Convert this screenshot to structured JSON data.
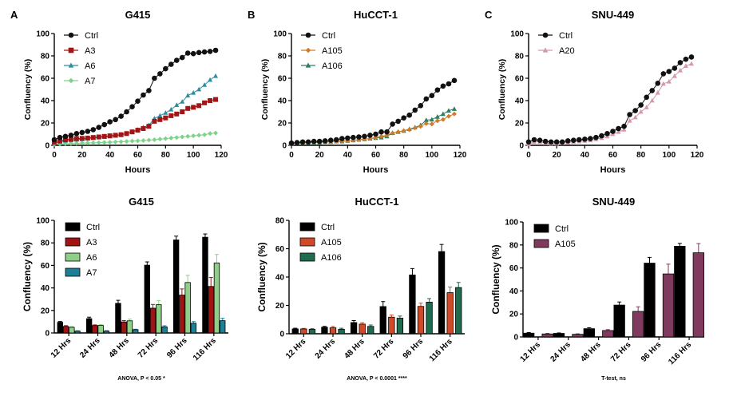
{
  "chart_data": [
    {
      "type": "line",
      "panel_label": "A",
      "title": "G415",
      "xlabel": "Hours",
      "ylabel": "Confluency (%)",
      "xlim": [
        0,
        120
      ],
      "ylim": [
        0,
        100
      ],
      "xticks": [
        0,
        20,
        40,
        60,
        80,
        100,
        120
      ],
      "yticks": [
        0,
        20,
        40,
        60,
        80,
        100
      ],
      "legend": "top-left",
      "grid": false,
      "x": [
        0,
        4,
        8,
        12,
        16,
        20,
        24,
        28,
        32,
        36,
        40,
        44,
        48,
        52,
        56,
        60,
        64,
        68,
        72,
        76,
        80,
        84,
        88,
        92,
        96,
        100,
        104,
        108,
        112,
        116
      ],
      "series": [
        {
          "name": "Ctrl",
          "color": "#111111",
          "marker": "circle",
          "values": [
            5,
            7,
            8,
            9,
            10.5,
            11.5,
            12.5,
            14,
            16,
            18.5,
            21,
            23,
            26,
            30,
            34.5,
            39.5,
            45,
            49,
            60,
            64,
            68.5,
            72.5,
            76,
            78.5,
            82.5,
            82,
            83,
            83.5,
            84,
            85
          ]
        },
        {
          "name": "A3",
          "color": "#a31515",
          "marker": "square",
          "values": [
            3,
            4,
            5,
            5.5,
            6,
            6.2,
            6.5,
            7,
            7.5,
            8,
            8.5,
            9,
            9.5,
            10.5,
            12,
            13.5,
            15,
            17,
            21.5,
            23,
            24.5,
            26.5,
            28,
            30,
            33,
            34,
            35.5,
            38,
            40,
            41
          ]
        },
        {
          "name": "A6",
          "color": "#2a8fa0",
          "marker": "triangle",
          "values": [
            2,
            3,
            4,
            4.5,
            5,
            5.5,
            6,
            6.5,
            7,
            7.5,
            8,
            8.5,
            9.5,
            10.5,
            12,
            14,
            16,
            18,
            24,
            26.5,
            29,
            32,
            36,
            39,
            44.5,
            47,
            50,
            54,
            58.5,
            62
          ]
        },
        {
          "name": "A7",
          "color": "#7ed38a",
          "marker": "diamond",
          "values": [
            1,
            1.2,
            1.4,
            1.6,
            1.8,
            2,
            2.1,
            2.2,
            2.4,
            2.6,
            2.8,
            3,
            3.2,
            3.5,
            3.8,
            4,
            4.3,
            4.6,
            5,
            5.5,
            6,
            6.5,
            7,
            7.5,
            8,
            8.5,
            9,
            9.5,
            10.5,
            11
          ]
        }
      ]
    },
    {
      "type": "line",
      "panel_label": "B",
      "title": "HuCCT-1",
      "xlabel": "Hours",
      "ylabel": "Confluency (%)",
      "xlim": [
        0,
        120
      ],
      "ylim": [
        0,
        100
      ],
      "xticks": [
        0,
        20,
        40,
        60,
        80,
        100,
        120
      ],
      "yticks": [
        0,
        20,
        40,
        60,
        80,
        100
      ],
      "legend": "top-left",
      "grid": false,
      "x": [
        0,
        4,
        8,
        12,
        16,
        20,
        24,
        28,
        32,
        36,
        40,
        44,
        48,
        52,
        56,
        60,
        64,
        68,
        72,
        76,
        80,
        84,
        88,
        92,
        96,
        100,
        104,
        108,
        112,
        116
      ],
      "series": [
        {
          "name": "Ctrl",
          "color": "#111111",
          "marker": "circle",
          "values": [
            2,
            2.5,
            3,
            3,
            3.5,
            3.5,
            4,
            4.5,
            5,
            6,
            6.5,
            7,
            7.5,
            8,
            9,
            10,
            12,
            12,
            19,
            21.5,
            24.5,
            27,
            31.5,
            35.5,
            41.5,
            44.5,
            49.5,
            53,
            55,
            58
          ]
        },
        {
          "name": "A105",
          "color": "#d07b2a",
          "marker": "diamond",
          "values": [
            2,
            2,
            2.5,
            2.5,
            2.5,
            3,
            3,
            3,
            3.5,
            4,
            4,
            4.5,
            5,
            5.5,
            6,
            7,
            8,
            9,
            11,
            12,
            13,
            14,
            15.5,
            17,
            19.5,
            19,
            22,
            23,
            26,
            28
          ]
        },
        {
          "name": "A106",
          "color": "#2e7d5e",
          "marker": "triangle",
          "values": [
            1.5,
            2,
            2,
            2.5,
            2.5,
            2.5,
            3,
            3,
            3.5,
            3.5,
            4,
            4.5,
            5,
            5.5,
            6,
            6.5,
            7,
            8,
            11,
            12,
            13,
            14.5,
            16,
            18,
            22.5,
            23,
            25.5,
            28,
            31,
            32.5
          ]
        }
      ]
    },
    {
      "type": "line",
      "panel_label": "C",
      "title": "SNU-449",
      "xlabel": "Hours",
      "ylabel": "Confluency (%)",
      "xlim": [
        0,
        120
      ],
      "ylim": [
        0,
        100
      ],
      "xticks": [
        0,
        20,
        40,
        60,
        80,
        100,
        120
      ],
      "yticks": [
        0,
        20,
        40,
        60,
        80,
        100
      ],
      "legend": "top-left",
      "grid": false,
      "x": [
        0,
        4,
        8,
        12,
        16,
        20,
        24,
        28,
        32,
        36,
        40,
        44,
        48,
        52,
        56,
        60,
        64,
        68,
        72,
        76,
        80,
        84,
        88,
        92,
        96,
        100,
        104,
        108,
        112,
        116
      ],
      "series": [
        {
          "name": "Ctrl",
          "color": "#111111",
          "marker": "circle",
          "values": [
            3,
            5,
            4.5,
            3.5,
            3,
            3,
            3,
            4,
            4.5,
            5,
            5.5,
            6,
            7,
            8.5,
            10.5,
            12.5,
            15,
            17,
            27.5,
            31,
            36,
            43,
            49,
            55.5,
            64,
            66,
            69,
            74,
            77,
            79
          ]
        },
        {
          "name": "A20",
          "color": "#d497b0",
          "marker": "triangle",
          "values": [
            1,
            3,
            3,
            2,
            1.5,
            1.5,
            2,
            2.5,
            3,
            3.5,
            4,
            4.5,
            5.5,
            6.5,
            8,
            10,
            12,
            14,
            22,
            25,
            30,
            34,
            40,
            47,
            55,
            57,
            62,
            67,
            71,
            73
          ]
        }
      ]
    },
    {
      "type": "bar",
      "title": "G415",
      "ylabel": "Confluency (%)",
      "ylim": [
        0,
        100
      ],
      "yticks": [
        0,
        20,
        40,
        60,
        80,
        100
      ],
      "legend": "top-left",
      "grid": false,
      "note": "ANOVA, P < 0.05 *",
      "categories": [
        "12 Hrs",
        "24 Hrs",
        "48 Hrs",
        "72 Hrs",
        "96 Hrs",
        "116 Hrs"
      ],
      "series": [
        {
          "name": "Ctrl",
          "color": "#000000",
          "values": [
            9.5,
            12.7,
            26.3,
            60.2,
            82.6,
            85
          ],
          "errors": [
            0.7,
            1.3,
            2.7,
            2.9,
            3.4,
            2.9
          ]
        },
        {
          "name": "A3",
          "color": "#a01414",
          "values": [
            5.8,
            6.6,
            9.8,
            22,
            33.6,
            41.3
          ],
          "errors": [
            0.7,
            0.6,
            1.2,
            3.3,
            5.5,
            8
          ]
        },
        {
          "name": "A6",
          "color": "#8fd088",
          "values": [
            5,
            6.7,
            10.8,
            25.1,
            44.8,
            62.2
          ],
          "errors": [
            0.7,
            0.7,
            1.5,
            3.7,
            6.4,
            7.5
          ]
        },
        {
          "name": "A7",
          "color": "#1f7f96",
          "values": [
            1.6,
            1.6,
            2.9,
            5.4,
            8.6,
            10.9
          ],
          "errors": [
            0.3,
            0.4,
            0.4,
            1,
            1.5,
            2.1
          ]
        }
      ]
    },
    {
      "type": "bar",
      "title": "HuCCT-1",
      "ylabel": "Confluency (%)",
      "ylim": [
        0,
        80
      ],
      "yticks": [
        0,
        20,
        40,
        60,
        80
      ],
      "legend": "top-left",
      "grid": false,
      "note": "ANOVA, P < 0.0001 ****",
      "categories": [
        "12 Hrs",
        "24 Hrs",
        "48 Hrs",
        "72 Hrs",
        "96 Hrs",
        "116 Hrs"
      ],
      "series": [
        {
          "name": "Ctrl",
          "color": "#000000",
          "values": [
            3.4,
            4.6,
            7.9,
            19.2,
            41.5,
            58
          ],
          "errors": [
            0.5,
            0.6,
            1.4,
            3.5,
            4.5,
            5
          ]
        },
        {
          "name": "A105",
          "color": "#d04a2a",
          "values": [
            3.4,
            4.2,
            6.8,
            11.7,
            19.3,
            29
          ],
          "errors": [
            0.4,
            1,
            1,
            1.5,
            2.3,
            4
          ]
        },
        {
          "name": "A106",
          "color": "#1f6b4e",
          "values": [
            3.1,
            3.2,
            5.2,
            11,
            22.3,
            32.6
          ],
          "errors": [
            0.5,
            0.7,
            1,
            1.5,
            2.5,
            3.6
          ]
        }
      ]
    },
    {
      "type": "bar",
      "title": "SNU-449",
      "ylabel": "Confluency (%)",
      "ylim": [
        0,
        100
      ],
      "yticks": [
        0,
        20,
        40,
        60,
        80,
        100
      ],
      "legend": "top-left",
      "grid": false,
      "note": "T-test, ns",
      "categories": [
        "12 Hrs",
        "24 Hrs",
        "48 Hrs",
        "72 Hrs",
        "96 Hrs",
        "116 Hrs"
      ],
      "series": [
        {
          "name": "Ctrl",
          "color": "#000000",
          "values": [
            3.3,
            3.1,
            7.2,
            27.7,
            64.2,
            78.9
          ],
          "errors": [
            0.5,
            0.4,
            0.8,
            2.7,
            5,
            2.5
          ]
        },
        {
          "name": "A105",
          "color": "#7f3a5e",
          "values": [
            2.6,
            2.3,
            5.6,
            22.2,
            54.8,
            73.2
          ],
          "errors": [
            0.5,
            0.4,
            0.8,
            4,
            8.5,
            8
          ]
        }
      ]
    }
  ]
}
